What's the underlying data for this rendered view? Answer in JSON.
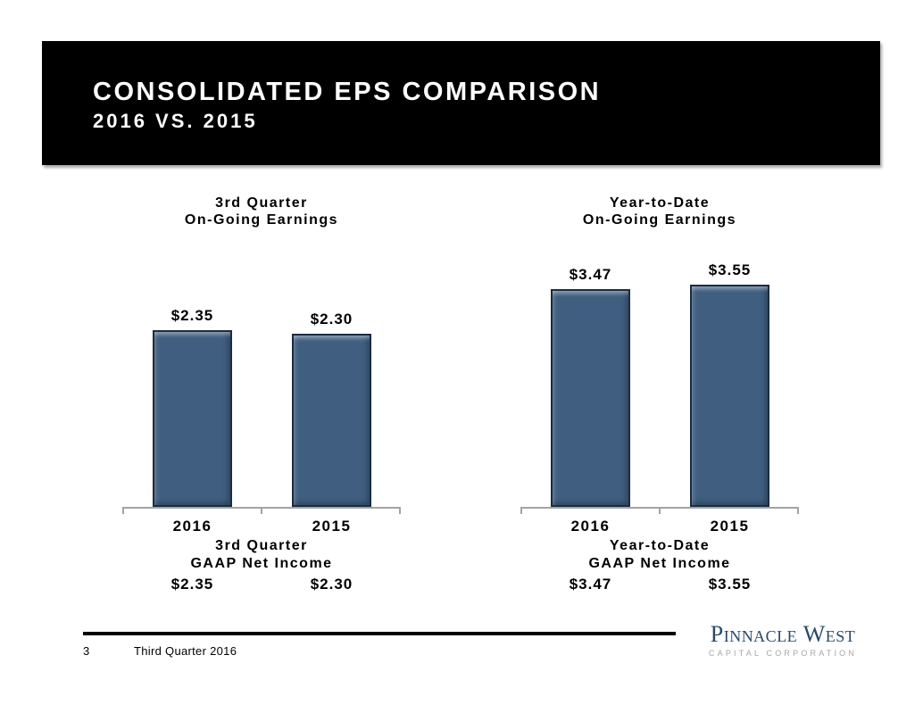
{
  "header": {
    "title": "CONSOLIDATED EPS COMPARISON",
    "subtitle": "2016 VS. 2015",
    "background_color": "#000000",
    "text_color": "#ffffff"
  },
  "chart_data": [
    {
      "type": "bar",
      "title": "3rd Quarter On-Going Earnings",
      "title_lines": [
        "3rd Quarter",
        "On-Going Earnings"
      ],
      "categories": [
        "2016",
        "2015"
      ],
      "values": [
        2.35,
        2.3
      ],
      "value_labels": [
        "$2.35",
        "$2.30"
      ],
      "footnote_lines": [
        "3rd Quarter",
        "GAAP Net Income"
      ],
      "footnote_values": [
        "$2.35",
        "$2.30"
      ],
      "bar_color": "#405f80",
      "bar_border_color": "#1a2c42",
      "axis_color": "#a3a3a3",
      "y_axis_visible": false,
      "grid": false,
      "legend": "none",
      "value_label_position": "above-bar"
    },
    {
      "type": "bar",
      "title": "Year-to-Date On-Going Earnings",
      "title_lines": [
        "Year-to-Date",
        "On-Going Earnings"
      ],
      "categories": [
        "2016",
        "2015"
      ],
      "values": [
        3.47,
        3.55
      ],
      "value_labels": [
        "$3.47",
        "$3.55"
      ],
      "footnote_lines": [
        "Year-to-Date",
        "GAAP Net Income"
      ],
      "footnote_values": [
        "$3.47",
        "$3.55"
      ],
      "bar_color": "#405f80",
      "bar_border_color": "#1a2c42",
      "axis_color": "#a3a3a3",
      "y_axis_visible": false,
      "grid": false,
      "legend": "none",
      "value_label_position": "above-bar"
    }
  ],
  "footer": {
    "page_number": "3",
    "text": "Third Quarter 2016",
    "logo": {
      "name": "Pinnacle West",
      "subtitle": "CAPITAL CORPORATION",
      "name_color": "#27496c",
      "subtitle_color": "#a6a6a6"
    }
  }
}
